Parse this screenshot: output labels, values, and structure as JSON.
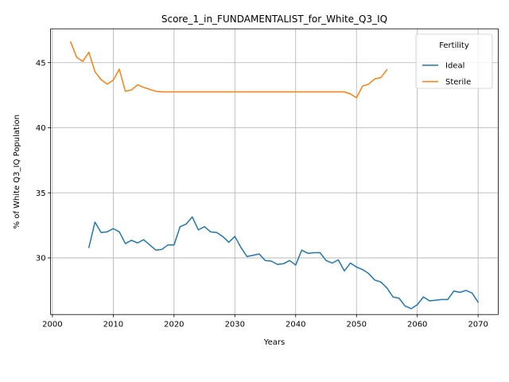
{
  "chart_data": {
    "type": "line",
    "title": "Score_1_in_FUNDAMENTALIST_for_White_Q3_IQ",
    "xlabel": "Years",
    "ylabel": "% of White Q3_IQ Population",
    "xlim": [
      1999.7,
      2073.3
    ],
    "ylim": [
      25.65,
      47.6
    ],
    "xticks": [
      2000,
      2010,
      2020,
      2030,
      2040,
      2050,
      2060,
      2070
    ],
    "yticks": [
      30,
      35,
      40,
      45
    ],
    "grid": true,
    "legend": {
      "title": "Fertility",
      "placement": "top-right"
    },
    "series": [
      {
        "name": "Ideal",
        "color": "#1f77b4",
        "x": [
          2006,
          2007,
          2008,
          2009,
          2010,
          2011,
          2012,
          2013,
          2014,
          2015,
          2016,
          2017,
          2018,
          2019,
          2020,
          2021,
          2022,
          2023,
          2024,
          2025,
          2026,
          2027,
          2028,
          2029,
          2030,
          2031,
          2032,
          2033,
          2034,
          2035,
          2036,
          2037,
          2038,
          2039,
          2040,
          2041,
          2042,
          2043,
          2044,
          2045,
          2046,
          2047,
          2048,
          2049,
          2050,
          2051,
          2052,
          2053,
          2054,
          2055,
          2056,
          2057,
          2058,
          2059,
          2060,
          2061,
          2062,
          2063,
          2064,
          2065,
          2066,
          2067,
          2068,
          2069,
          2070
        ],
        "y": [
          30.8,
          32.75,
          31.95,
          32.0,
          32.25,
          32.0,
          31.1,
          31.35,
          31.15,
          31.4,
          31.0,
          30.6,
          30.65,
          31.0,
          31.0,
          32.4,
          32.6,
          33.15,
          32.15,
          32.4,
          32.0,
          31.95,
          31.65,
          31.2,
          31.65,
          30.8,
          30.1,
          30.2,
          30.3,
          29.8,
          29.75,
          29.5,
          29.55,
          29.8,
          29.45,
          30.6,
          30.35,
          30.4,
          30.4,
          29.8,
          29.6,
          29.85,
          29.0,
          29.6,
          29.3,
          29.1,
          28.8,
          28.3,
          28.15,
          27.7,
          27.0,
          26.9,
          26.3,
          26.1,
          26.4,
          27.0,
          26.7,
          26.75,
          26.8,
          26.8,
          27.45,
          27.35,
          27.5,
          27.3,
          26.6
        ]
      },
      {
        "name": "Sterile",
        "color": "#ff7f0e",
        "x": [
          2003,
          2004,
          2005,
          2006,
          2007,
          2008,
          2009,
          2010,
          2011,
          2012,
          2013,
          2014,
          2015,
          2016,
          2017,
          2018,
          2019,
          2020,
          2021,
          2022,
          2023,
          2024,
          2025,
          2026,
          2027,
          2028,
          2029,
          2030,
          2031,
          2032,
          2033,
          2034,
          2035,
          2036,
          2037,
          2038,
          2039,
          2040,
          2041,
          2042,
          2043,
          2044,
          2045,
          2046,
          2047,
          2048,
          2049,
          2050,
          2051,
          2052,
          2053,
          2054,
          2055
        ],
        "y": [
          46.6,
          45.4,
          45.1,
          45.8,
          44.3,
          43.7,
          43.35,
          43.65,
          44.5,
          42.8,
          42.9,
          43.3,
          43.1,
          42.95,
          42.8,
          42.75,
          42.75,
          42.75,
          42.75,
          42.75,
          42.75,
          42.75,
          42.75,
          42.75,
          42.75,
          42.75,
          42.75,
          42.75,
          42.75,
          42.75,
          42.75,
          42.75,
          42.75,
          42.75,
          42.75,
          42.75,
          42.75,
          42.75,
          42.75,
          42.75,
          42.75,
          42.75,
          42.75,
          42.75,
          42.75,
          42.75,
          42.6,
          42.3,
          43.2,
          43.35,
          43.75,
          43.85,
          44.45
        ]
      }
    ]
  }
}
